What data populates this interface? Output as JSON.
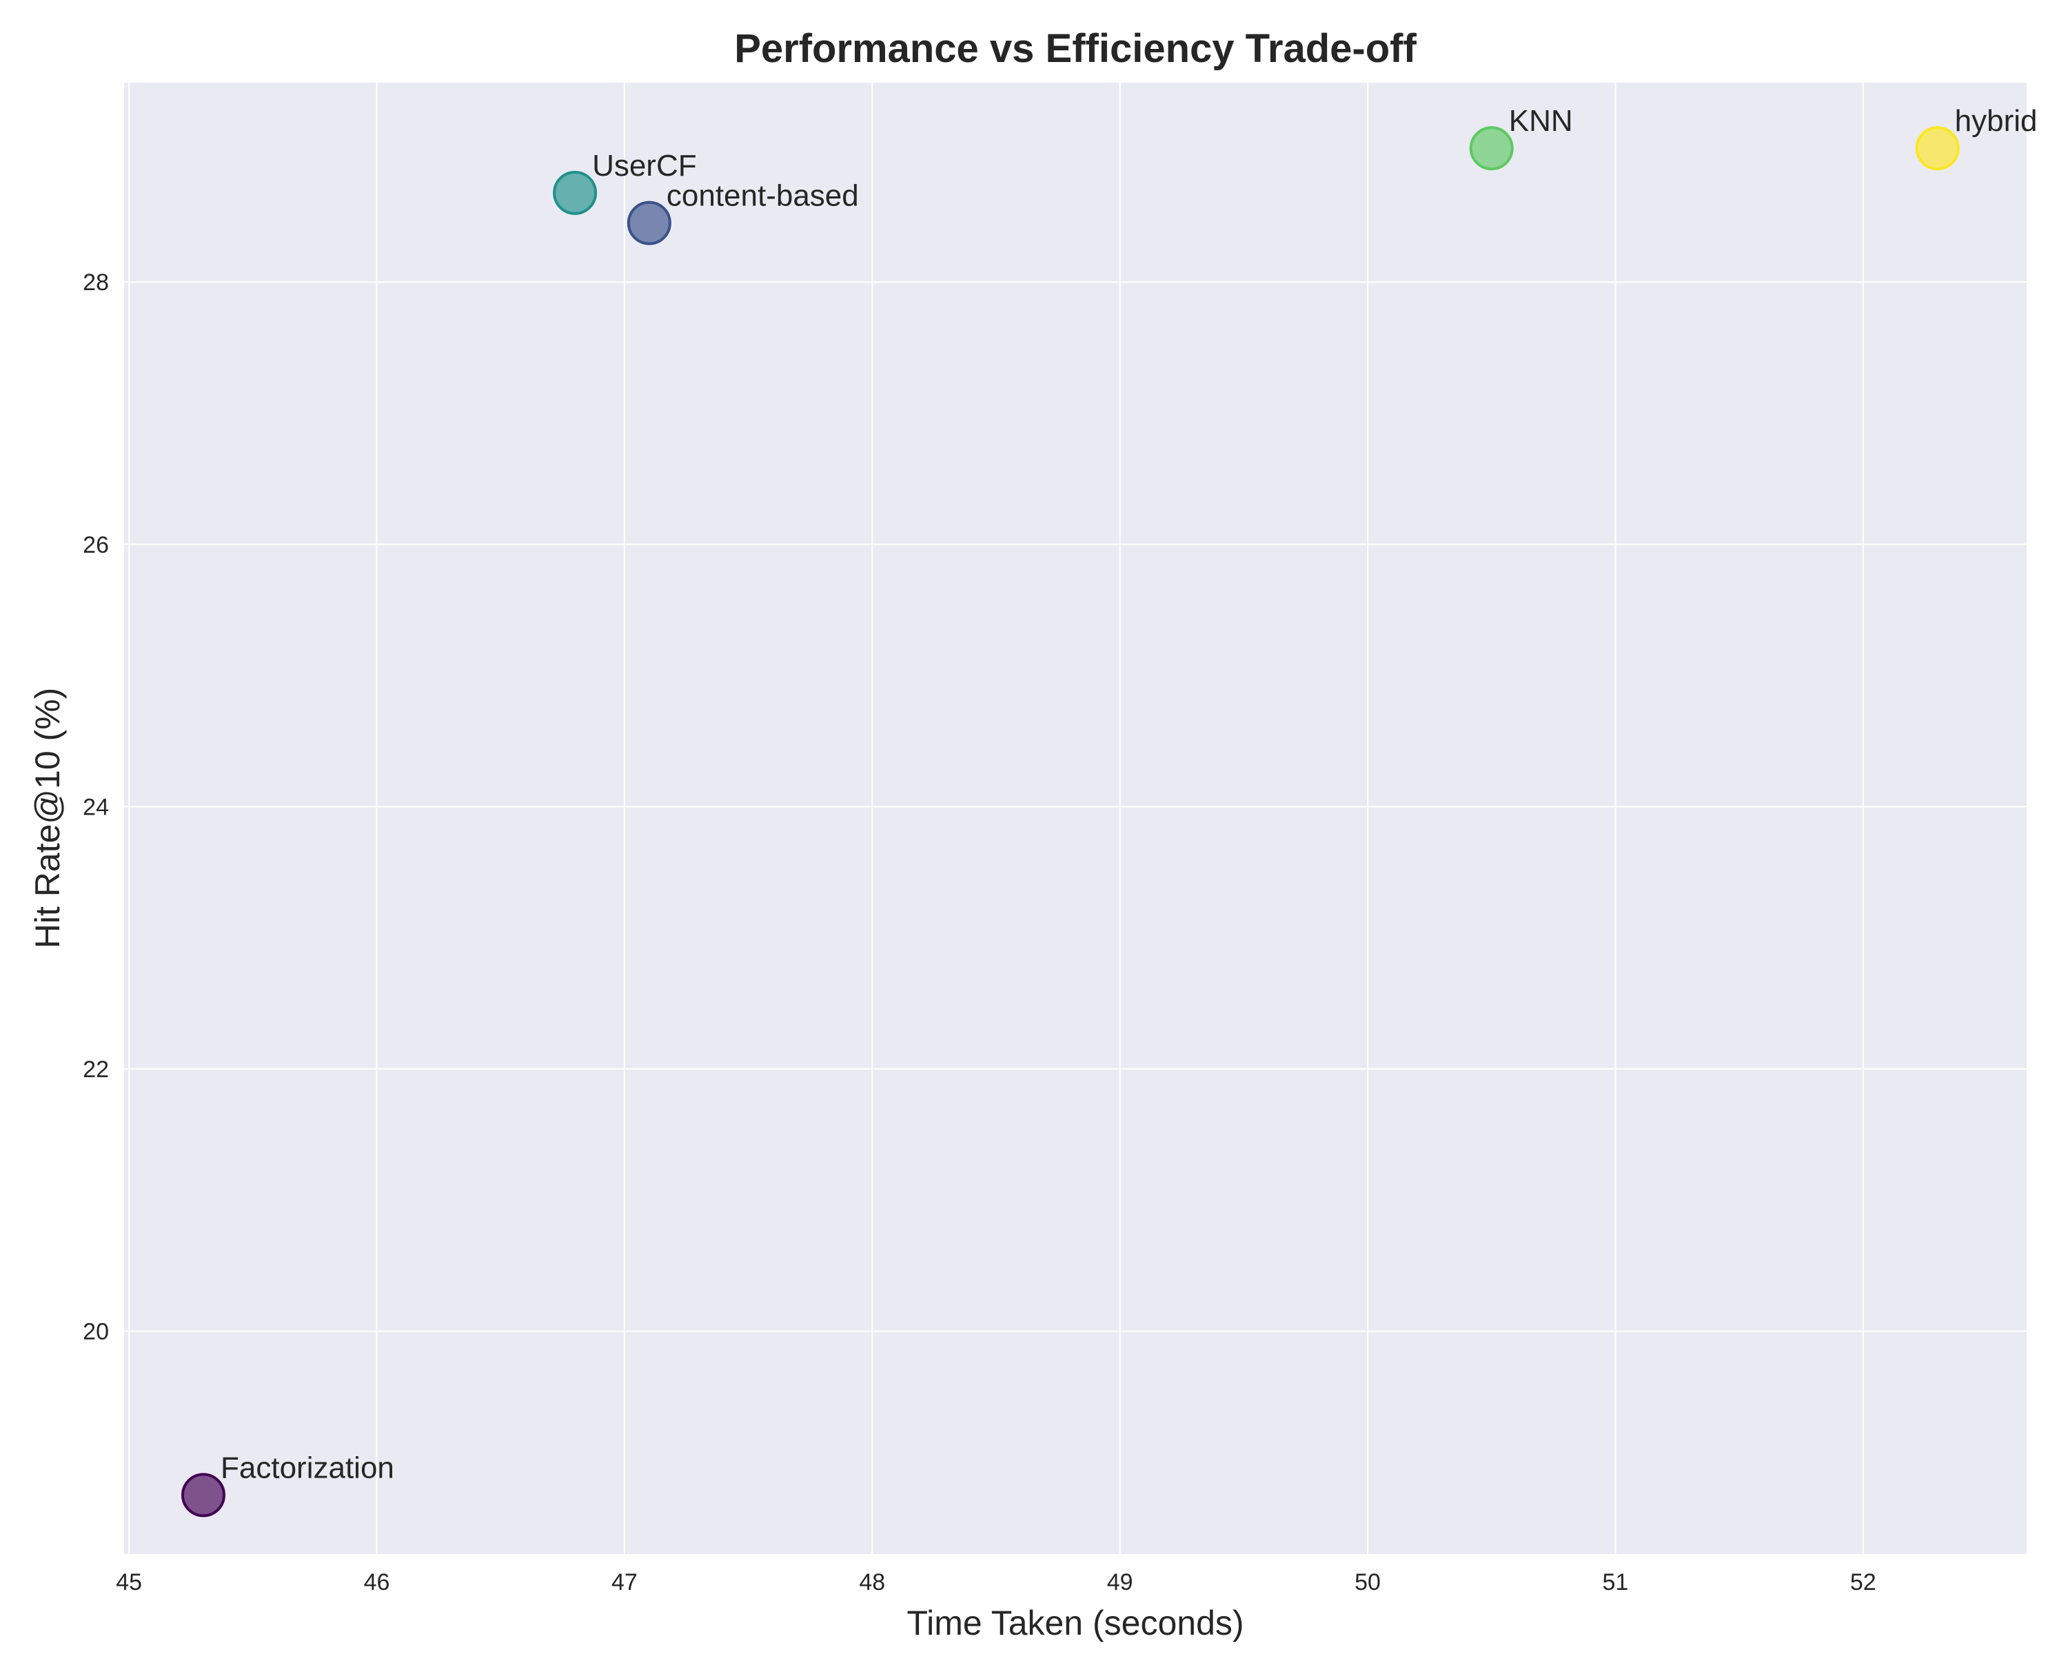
{
  "chart_data": {
    "type": "scatter",
    "title": "Performance vs Efficiency Trade-off",
    "xlabel": "Time Taken (seconds)",
    "ylabel": "Hit Rate@10 (%)",
    "xlim": [
      44.98,
      52.66
    ],
    "ylim": [
      18.3,
      29.52
    ],
    "xticks": [
      45,
      46,
      47,
      48,
      49,
      50,
      51,
      52
    ],
    "yticks": [
      20,
      22,
      24,
      26,
      28
    ],
    "grid": true,
    "points": [
      {
        "label": "Factorization",
        "x": 45.3,
        "y": 18.75,
        "color": "#440154"
      },
      {
        "label": "content-based",
        "x": 47.1,
        "y": 28.45,
        "color": "#3b528b"
      },
      {
        "label": "UserCF",
        "x": 46.8,
        "y": 28.68,
        "color": "#21918c"
      },
      {
        "label": "KNN",
        "x": 50.5,
        "y": 29.02,
        "color": "#5ec962"
      },
      {
        "label": "hybrid",
        "x": 52.3,
        "y": 29.02,
        "color": "#fde725"
      }
    ],
    "plot_background": "#eaeaf2",
    "grid_color": "#ffffff"
  }
}
